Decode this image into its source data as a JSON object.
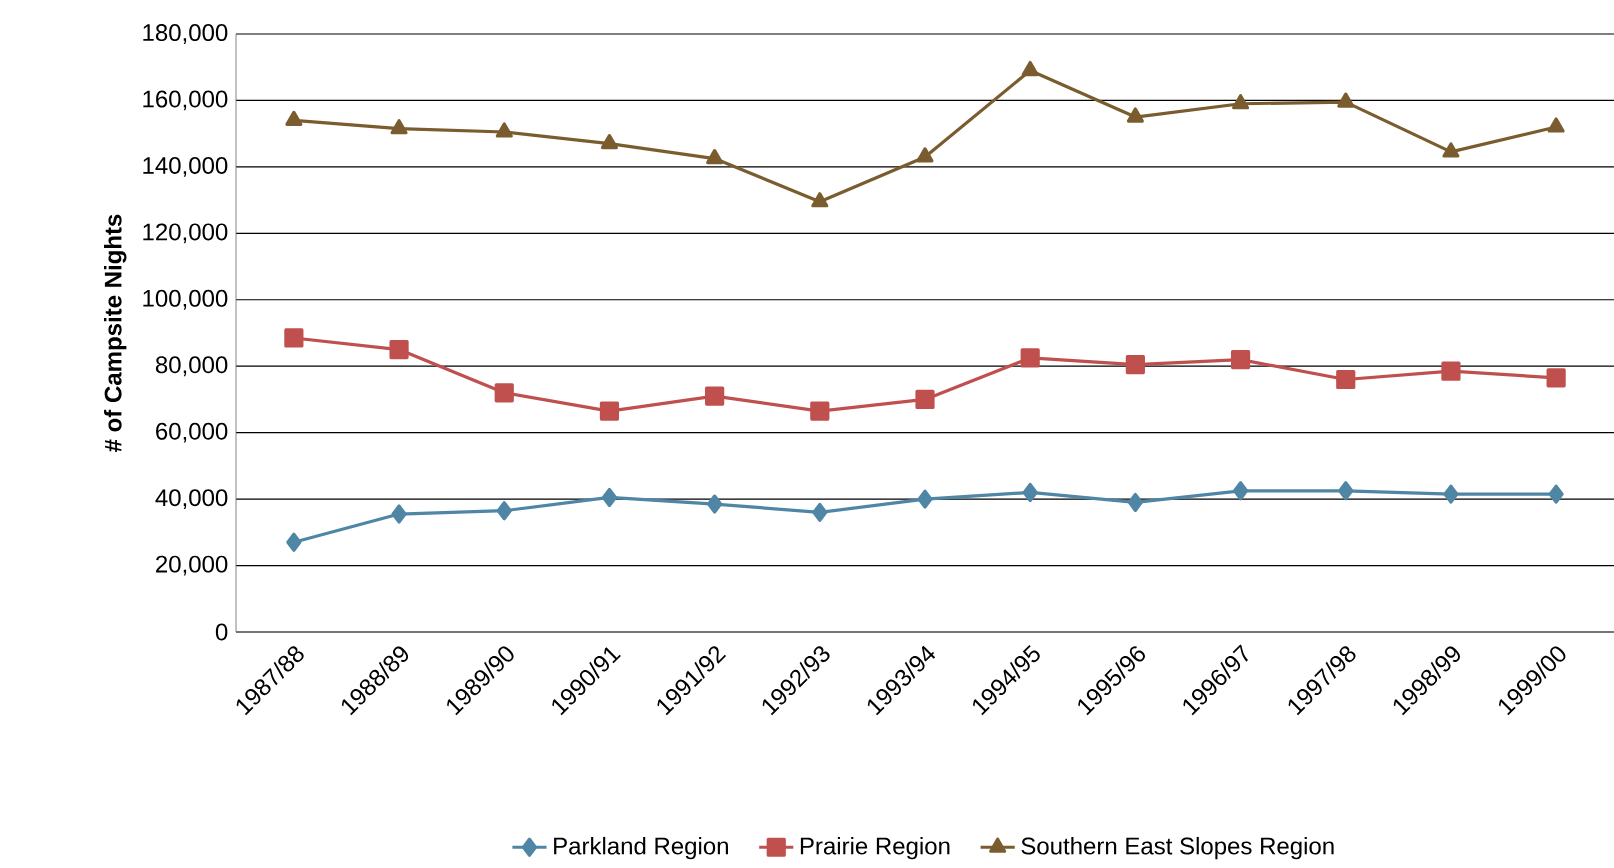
{
  "chart_data": {
    "type": "line",
    "ylabel": "# of Campsite Nights",
    "categories": [
      "1987/88",
      "1988/89",
      "1989/90",
      "1990/91",
      "1991/92",
      "1992/93",
      "1993/94",
      "1994/95",
      "1995/96",
      "1996/97",
      "1997/98",
      "1998/99",
      "1999/00"
    ],
    "series": [
      {
        "name": "Parkland Region",
        "color": "#4f86a6",
        "marker": "diamond",
        "values": [
          27000,
          35500,
          36500,
          40500,
          38500,
          36000,
          40000,
          42000,
          39000,
          42500,
          42500,
          41500,
          41500
        ]
      },
      {
        "name": "Prairie Region",
        "color": "#c0504d",
        "marker": "square",
        "values": [
          88500,
          85000,
          72000,
          66500,
          71000,
          66500,
          70000,
          82500,
          80500,
          82000,
          76000,
          78500,
          76500
        ]
      },
      {
        "name": "Southern East Slopes Region",
        "color": "#7a5c2e",
        "marker": "triangle",
        "values": [
          154000,
          151500,
          150500,
          147000,
          142500,
          129500,
          143000,
          169000,
          155000,
          159000,
          159500,
          144500,
          152000
        ]
      }
    ],
    "ylim": [
      0,
      180000
    ],
    "yticks": [
      {
        "value": 0,
        "label": "0"
      },
      {
        "value": 20000,
        "label": "20,000"
      },
      {
        "value": 40000,
        "label": "40,000"
      },
      {
        "value": 60000,
        "label": "60,000"
      },
      {
        "value": 80000,
        "label": "80,000"
      },
      {
        "value": 100000,
        "label": "100,000"
      },
      {
        "value": 120000,
        "label": "120,000"
      },
      {
        "value": 140000,
        "label": "140,000"
      },
      {
        "value": 160000,
        "label": "160,000"
      },
      {
        "value": 180000,
        "label": "180,000"
      }
    ],
    "grid": "y",
    "legend": "bottom",
    "line_style": "solid"
  }
}
